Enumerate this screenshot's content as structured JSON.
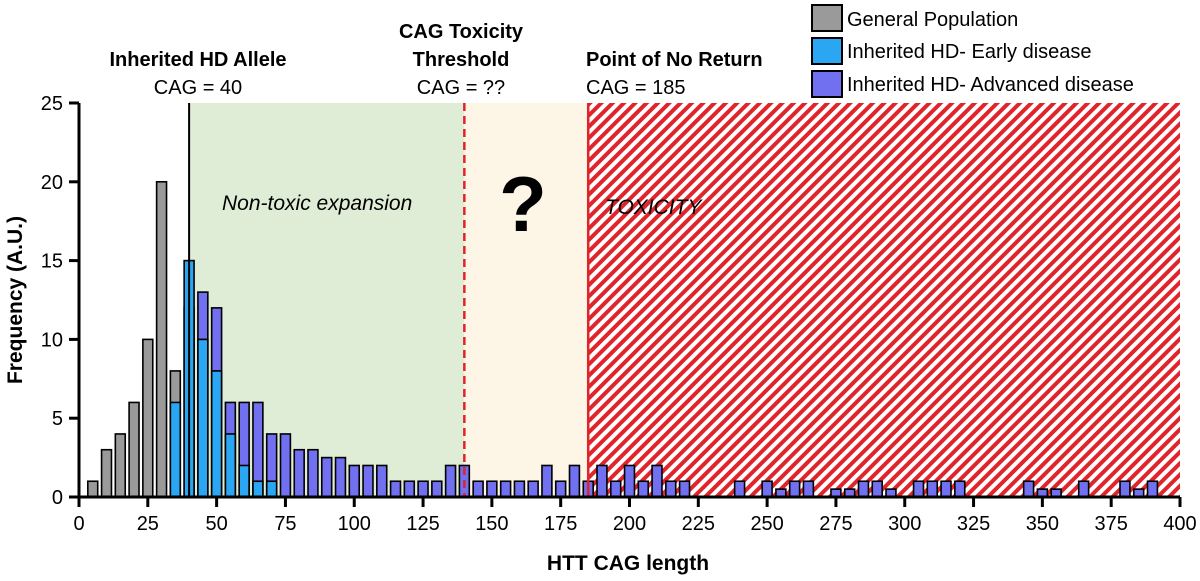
{
  "chart_data": {
    "type": "bar",
    "xlabel": "HTT CAG length",
    "ylabel": "Frequency (A.U.)",
    "xlim": [
      0,
      400
    ],
    "ylim": [
      0,
      25
    ],
    "xticks": [
      0,
      25,
      50,
      75,
      100,
      125,
      150,
      175,
      200,
      225,
      250,
      275,
      300,
      325,
      350,
      375,
      400
    ],
    "yticks": [
      0,
      5,
      10,
      15,
      20,
      25
    ],
    "bar_width": 3.6,
    "legend_position": "top-right",
    "series": [
      {
        "name": "General Population",
        "color": "#9a9a9a",
        "x": [
          5,
          10,
          15,
          20,
          25,
          30,
          35
        ],
        "values": [
          1,
          3,
          4,
          6,
          10,
          20,
          8
        ]
      },
      {
        "name": "Inherited HD- Advanced disease",
        "color": "#7070f0",
        "x": [
          40,
          45,
          50,
          55,
          60,
          65,
          70,
          75,
          80,
          85,
          90,
          95,
          100,
          105,
          110,
          115,
          120,
          125,
          130,
          135,
          140,
          145,
          150,
          155,
          160,
          165,
          170,
          175,
          180,
          185,
          190,
          195,
          200,
          205,
          210,
          215,
          220,
          240,
          250,
          255,
          260,
          265,
          275,
          280,
          285,
          290,
          295,
          305,
          310,
          315,
          320,
          345,
          350,
          355,
          365,
          380,
          385,
          390
        ],
        "values": [
          12,
          13,
          12,
          6,
          6,
          6,
          4,
          4,
          3,
          3,
          2.5,
          2.5,
          2,
          2,
          2,
          1,
          1,
          1,
          1,
          2,
          2,
          1,
          1,
          1,
          1,
          1,
          2,
          1,
          2,
          1,
          2,
          1,
          2,
          1,
          2,
          1,
          1,
          1,
          1,
          0.5,
          1,
          1,
          0.5,
          0.5,
          1,
          1,
          0.5,
          1,
          1,
          1,
          1,
          1,
          0.5,
          0.5,
          1,
          1,
          0.5,
          1
        ]
      },
      {
        "name": "Inherited HD- Early disease",
        "color": "#2aa6f2",
        "x": [
          35,
          40,
          45,
          50,
          55,
          60,
          65,
          70
        ],
        "values": [
          6,
          15,
          10,
          8,
          4,
          2,
          1,
          1
        ]
      }
    ],
    "annotations": {
      "hd_allele_title": "Inherited HD Allele",
      "hd_allele_value": "CAG = 40",
      "threshold_title_1": "CAG Toxicity",
      "threshold_title_2": "Threshold",
      "threshold_value": "CAG = ??",
      "no_return_title": "Point of No Return",
      "no_return_value": "CAG = 185",
      "nontoxic_label": "Non-toxic expansion",
      "question": "?",
      "toxicity_label": "TOXICITY"
    },
    "regions": {
      "nontoxic": {
        "from": 40,
        "to": 140,
        "color": "#dfecd6"
      },
      "unknown": {
        "from": 140,
        "to": 185,
        "color": "#fdf6e6"
      },
      "toxic": {
        "from": 185,
        "to": 400,
        "color": "#e0242b"
      }
    },
    "lines": {
      "hd_allele_x": 40,
      "threshold_x": 140,
      "no_return_x": 185
    }
  }
}
